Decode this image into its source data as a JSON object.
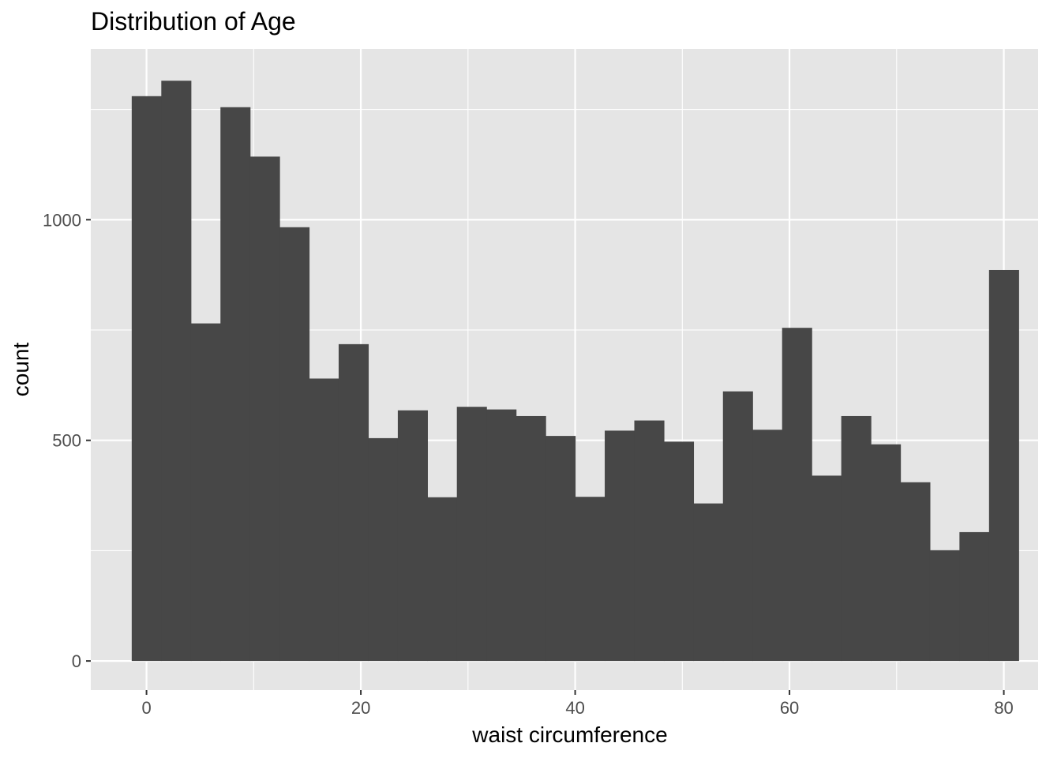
{
  "chart_data": {
    "type": "bar",
    "title": "Distribution of Age",
    "xlabel": "waist circumference",
    "ylabel": "count",
    "bin_width": 2.76,
    "bins": [
      {
        "x": 0.0,
        "count": 1280
      },
      {
        "x": 2.76,
        "count": 1315
      },
      {
        "x": 5.52,
        "count": 765
      },
      {
        "x": 8.28,
        "count": 1255
      },
      {
        "x": 11.03,
        "count": 1143
      },
      {
        "x": 13.79,
        "count": 983
      },
      {
        "x": 16.55,
        "count": 640
      },
      {
        "x": 19.31,
        "count": 718
      },
      {
        "x": 22.07,
        "count": 505
      },
      {
        "x": 24.83,
        "count": 568
      },
      {
        "x": 27.59,
        "count": 371
      },
      {
        "x": 30.34,
        "count": 576
      },
      {
        "x": 33.1,
        "count": 570
      },
      {
        "x": 35.86,
        "count": 555
      },
      {
        "x": 38.62,
        "count": 510
      },
      {
        "x": 41.38,
        "count": 372
      },
      {
        "x": 44.14,
        "count": 522
      },
      {
        "x": 46.9,
        "count": 545
      },
      {
        "x": 49.66,
        "count": 497
      },
      {
        "x": 52.41,
        "count": 357
      },
      {
        "x": 55.17,
        "count": 611
      },
      {
        "x": 57.93,
        "count": 524
      },
      {
        "x": 60.69,
        "count": 755
      },
      {
        "x": 63.45,
        "count": 420
      },
      {
        "x": 66.21,
        "count": 555
      },
      {
        "x": 68.97,
        "count": 491
      },
      {
        "x": 71.72,
        "count": 405
      },
      {
        "x": 74.48,
        "count": 251
      },
      {
        "x": 77.24,
        "count": 292
      },
      {
        "x": 80.0,
        "count": 886
      }
    ],
    "x_ticks": [
      "0",
      "20",
      "40",
      "60",
      "80"
    ],
    "y_ticks": [
      "0",
      "500",
      "1000"
    ],
    "xlim": [
      -5.2,
      83.2
    ],
    "ylim": [
      -66,
      1387
    ],
    "grid": true,
    "colors": {
      "panel": "#e5e5e5",
      "grid": "#ffffff",
      "bar": "#474747",
      "tick": "#4d4d4d"
    }
  }
}
